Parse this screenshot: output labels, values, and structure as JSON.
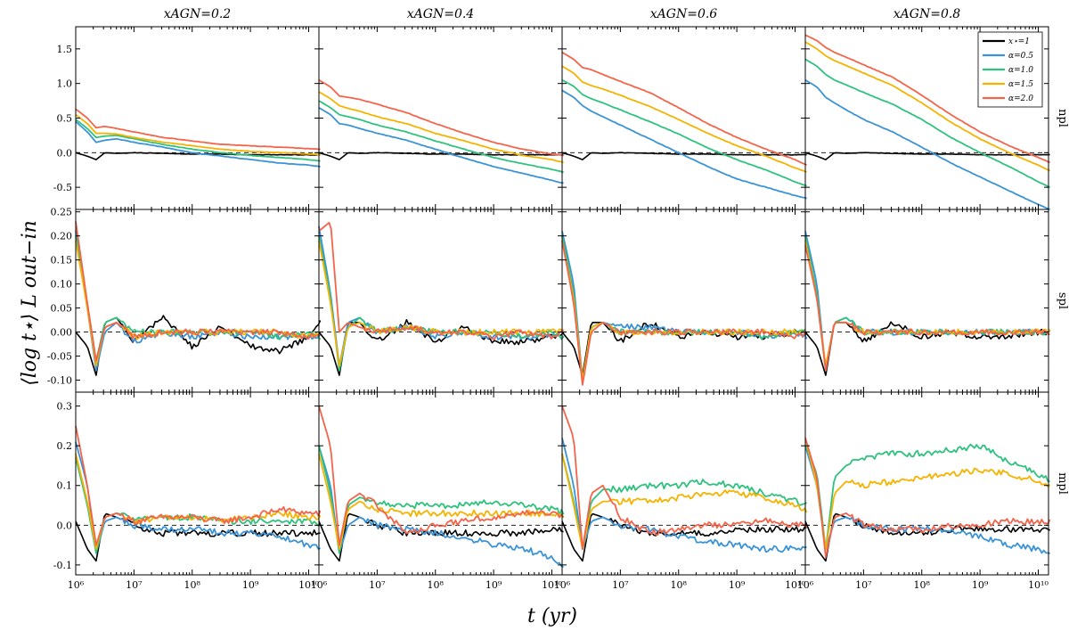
{
  "colors": {
    "xstar": "#000000",
    "a05": "#3a93d6",
    "a10": "#2ec27e",
    "a15": "#f5b300",
    "a20": "#f4644a"
  },
  "chart_data": {
    "type": "line",
    "xlabel": "t (yr)",
    "ylabel": "⟨log t⋆⟩ L out−in",
    "xscale": "log",
    "xlim": [
      1000000,
      15000000000
    ],
    "x_ticks": [
      {
        "value": 1000000,
        "label": "10⁶"
      },
      {
        "value": 10000000,
        "label": "10⁷"
      },
      {
        "value": 100000000,
        "label": "10⁸"
      },
      {
        "value": 1000000000,
        "label": "10⁹"
      },
      {
        "value": 10000000000,
        "label": "10¹⁰"
      }
    ],
    "columns": [
      "xAGN=0.2",
      "xAGN=0.4",
      "xAGN=0.6",
      "xAGN=0.8"
    ],
    "rows": [
      {
        "label": "npl",
        "ylim": [
          -0.82,
          1.82
        ],
        "yticks": [
          "-0.5",
          "0.0",
          "0.5",
          "1.0",
          "1.5"
        ],
        "ytick_values": [
          -0.5,
          0.0,
          0.5,
          1.0,
          1.5
        ]
      },
      {
        "label": "spl",
        "ylim": [
          -0.125,
          0.255
        ],
        "yticks": [
          "-0.10",
          "-0.05",
          "0.00",
          "0.05",
          "0.10",
          "0.15",
          "0.20",
          "0.25"
        ],
        "ytick_values": [
          -0.1,
          -0.05,
          0.0,
          0.05,
          0.1,
          0.15,
          0.2,
          0.25
        ]
      },
      {
        "label": "mpl",
        "ylim": [
          -0.125,
          0.335
        ],
        "yticks": [
          "-0.1",
          "0.0",
          "0.1",
          "0.2",
          "0.3"
        ],
        "ytick_values": [
          -0.1,
          0.0,
          0.1,
          0.2,
          0.3
        ]
      }
    ],
    "legend": {
      "position": "top-right",
      "entries": [
        {
          "key": "xstar",
          "label": "x⋆=1"
        },
        {
          "key": "a05",
          "label": "α=0.5"
        },
        {
          "key": "a10",
          "label": "α=1.0"
        },
        {
          "key": "a15",
          "label": "α=1.5"
        },
        {
          "key": "a20",
          "label": "α=2.0"
        }
      ]
    },
    "series_keys": [
      "xstar",
      "a05",
      "a10",
      "a15",
      "a20"
    ],
    "series_x_log10": [
      6.0,
      6.2,
      6.35,
      6.5,
      6.7,
      7.0,
      7.5,
      8.0,
      8.5,
      9.0,
      9.5,
      10.0,
      10.2
    ],
    "panels": [
      [
        {
          "xstar": [
            0.0,
            -0.05,
            -0.1,
            0.0,
            -0.01,
            0.0,
            -0.01,
            -0.02,
            -0.02,
            -0.03,
            -0.03,
            -0.03,
            -0.03
          ],
          "a05": [
            0.45,
            0.3,
            0.15,
            0.18,
            0.2,
            0.15,
            0.08,
            0.0,
            -0.05,
            -0.1,
            -0.15,
            -0.18,
            -0.2
          ],
          "a10": [
            0.48,
            0.35,
            0.22,
            0.24,
            0.25,
            0.2,
            0.12,
            0.05,
            0.0,
            -0.04,
            -0.07,
            -0.1,
            -0.12
          ],
          "a15": [
            0.55,
            0.42,
            0.28,
            0.28,
            0.27,
            0.22,
            0.15,
            0.1,
            0.05,
            0.02,
            0.0,
            -0.02,
            -0.03
          ],
          "a20": [
            0.63,
            0.5,
            0.36,
            0.38,
            0.35,
            0.3,
            0.22,
            0.17,
            0.12,
            0.1,
            0.08,
            0.06,
            0.05
          ]
        },
        {
          "xstar": [
            0.0,
            -0.03,
            -0.09,
            0.02,
            0.03,
            -0.02,
            0.03,
            -0.03,
            0.01,
            -0.03,
            -0.04,
            -0.01,
            0.02
          ],
          "a05": [
            0.21,
            0.05,
            -0.08,
            0.0,
            0.02,
            -0.02,
            0.0,
            -0.01,
            0.0,
            -0.01,
            -0.01,
            -0.01,
            -0.01
          ],
          "a10": [
            0.2,
            0.06,
            -0.06,
            0.02,
            0.03,
            0.0,
            0.0,
            0.0,
            0.0,
            0.0,
            -0.01,
            0.0,
            -0.01
          ],
          "a15": [
            0.19,
            0.05,
            -0.07,
            0.01,
            0.02,
            -0.01,
            0.0,
            0.0,
            0.0,
            0.0,
            0.0,
            -0.01,
            0.0
          ],
          "a20": [
            0.23,
            0.06,
            -0.06,
            0.01,
            0.02,
            -0.01,
            0.0,
            0.0,
            0.0,
            0.0,
            0.0,
            -0.01,
            0.0
          ]
        },
        {
          "xstar": [
            0.01,
            -0.06,
            -0.09,
            0.03,
            0.02,
            0.0,
            -0.02,
            -0.02,
            -0.02,
            -0.02,
            -0.02,
            -0.02,
            -0.02
          ],
          "a05": [
            0.21,
            0.1,
            -0.07,
            0.01,
            0.02,
            0.0,
            -0.01,
            -0.01,
            -0.02,
            -0.02,
            -0.03,
            -0.05,
            -0.06
          ],
          "a10": [
            0.17,
            0.05,
            -0.07,
            0.02,
            0.03,
            0.02,
            0.02,
            0.02,
            0.01,
            0.01,
            0.01,
            0.01,
            0.0
          ],
          "a15": [
            0.18,
            0.06,
            -0.06,
            0.02,
            0.03,
            0.01,
            0.02,
            0.02,
            0.01,
            0.02,
            0.03,
            0.02,
            0.02
          ],
          "a20": [
            0.25,
            0.1,
            -0.05,
            0.02,
            0.03,
            0.01,
            0.02,
            0.02,
            0.01,
            0.02,
            0.04,
            0.03,
            0.03
          ]
        }
      ],
      [
        {
          "xstar": [
            0.0,
            -0.05,
            -0.1,
            0.0,
            -0.01,
            0.0,
            -0.01,
            -0.02,
            -0.02,
            -0.03,
            -0.03,
            -0.03,
            -0.03
          ],
          "a05": [
            0.65,
            0.55,
            0.42,
            0.4,
            0.35,
            0.28,
            0.18,
            0.05,
            -0.08,
            -0.2,
            -0.3,
            -0.4,
            -0.44
          ],
          "a10": [
            0.75,
            0.65,
            0.55,
            0.52,
            0.48,
            0.4,
            0.3,
            0.17,
            0.05,
            -0.07,
            -0.16,
            -0.24,
            -0.28
          ],
          "a15": [
            0.88,
            0.78,
            0.68,
            0.64,
            0.6,
            0.52,
            0.42,
            0.28,
            0.17,
            0.05,
            -0.04,
            -0.1,
            -0.14
          ],
          "a20": [
            1.05,
            0.95,
            0.82,
            0.8,
            0.77,
            0.7,
            0.58,
            0.42,
            0.28,
            0.15,
            0.05,
            -0.02,
            -0.04
          ]
        },
        {
          "xstar": [
            0.0,
            -0.03,
            -0.09,
            0.02,
            0.02,
            -0.02,
            0.02,
            -0.02,
            0.01,
            -0.02,
            -0.02,
            -0.01,
            0.0
          ],
          "a05": [
            0.22,
            0.08,
            -0.07,
            0.02,
            0.03,
            0.0,
            0.01,
            -0.01,
            0.0,
            -0.01,
            -0.01,
            -0.01,
            -0.01
          ],
          "a10": [
            0.2,
            0.07,
            -0.08,
            0.01,
            0.03,
            0.0,
            0.01,
            0.0,
            0.0,
            0.0,
            -0.01,
            0.0,
            -0.01
          ],
          "a15": [
            0.19,
            0.06,
            -0.07,
            0.01,
            0.02,
            0.0,
            0.01,
            0.0,
            0.0,
            0.0,
            0.0,
            0.0,
            0.0
          ],
          "a20": [
            0.21,
            0.23,
            0.0,
            0.02,
            0.01,
            0.0,
            0.01,
            0.0,
            0.0,
            -0.01,
            0.0,
            -0.01,
            0.0
          ]
        },
        {
          "xstar": [
            0.01,
            -0.06,
            -0.09,
            0.03,
            0.02,
            0.0,
            -0.02,
            -0.02,
            -0.02,
            -0.02,
            -0.02,
            -0.01,
            -0.01
          ],
          "a05": [
            0.2,
            0.1,
            -0.07,
            0.0,
            0.02,
            0.0,
            -0.01,
            -0.02,
            -0.03,
            -0.05,
            -0.06,
            -0.08,
            -0.1
          ],
          "a10": [
            0.2,
            0.08,
            -0.07,
            0.05,
            0.07,
            0.06,
            0.05,
            0.05,
            0.05,
            0.06,
            0.05,
            0.04,
            0.03
          ],
          "a15": [
            0.18,
            0.06,
            -0.06,
            0.04,
            0.06,
            0.04,
            0.03,
            0.03,
            0.03,
            0.03,
            0.03,
            0.03,
            0.02
          ],
          "a20": [
            0.3,
            0.2,
            -0.05,
            0.06,
            0.08,
            0.05,
            -0.02,
            0.0,
            0.01,
            0.02,
            0.03,
            0.03,
            0.02
          ]
        }
      ],
      [
        {
          "xstar": [
            0.0,
            -0.05,
            -0.1,
            0.0,
            -0.01,
            0.0,
            -0.01,
            -0.02,
            -0.02,
            -0.03,
            -0.03,
            -0.03,
            -0.03
          ],
          "a05": [
            0.9,
            0.8,
            0.68,
            0.6,
            0.52,
            0.4,
            0.2,
            0.0,
            -0.2,
            -0.38,
            -0.5,
            -0.62,
            -0.66
          ],
          "a10": [
            1.05,
            0.96,
            0.84,
            0.78,
            0.72,
            0.62,
            0.45,
            0.27,
            0.07,
            -0.1,
            -0.25,
            -0.42,
            -0.48
          ],
          "a15": [
            1.25,
            1.15,
            1.02,
            0.97,
            0.92,
            0.83,
            0.67,
            0.48,
            0.28,
            0.1,
            -0.05,
            -0.22,
            -0.28
          ],
          "a20": [
            1.45,
            1.35,
            1.23,
            1.2,
            1.13,
            1.03,
            0.87,
            0.65,
            0.42,
            0.22,
            0.05,
            -0.1,
            -0.18
          ]
        },
        {
          "xstar": [
            0.0,
            -0.03,
            -0.09,
            0.02,
            0.02,
            -0.02,
            0.02,
            -0.01,
            0.0,
            -0.01,
            -0.01,
            0.0,
            0.0
          ],
          "a05": [
            0.21,
            0.1,
            -0.1,
            0.01,
            0.02,
            0.01,
            0.01,
            0.0,
            0.0,
            0.0,
            -0.01,
            0.0,
            -0.01
          ],
          "a10": [
            0.2,
            0.08,
            -0.1,
            0.01,
            0.02,
            0.0,
            0.0,
            0.0,
            0.0,
            0.0,
            -0.01,
            0.0,
            0.0
          ],
          "a15": [
            0.19,
            0.07,
            -0.1,
            0.01,
            0.02,
            0.0,
            0.0,
            0.0,
            0.0,
            0.0,
            0.0,
            0.0,
            0.0
          ],
          "a20": [
            0.19,
            0.06,
            -0.11,
            0.0,
            0.02,
            0.0,
            0.0,
            0.0,
            0.0,
            0.0,
            0.0,
            -0.01,
            0.0
          ]
        },
        {
          "xstar": [
            0.01,
            -0.06,
            -0.09,
            0.03,
            0.02,
            0.0,
            -0.02,
            -0.02,
            -0.02,
            -0.01,
            -0.01,
            -0.01,
            -0.01
          ],
          "a05": [
            0.22,
            0.1,
            -0.06,
            0.01,
            0.02,
            0.0,
            -0.01,
            -0.03,
            -0.04,
            -0.05,
            -0.06,
            -0.06,
            -0.06
          ],
          "a10": [
            0.18,
            0.06,
            -0.06,
            0.06,
            0.09,
            0.09,
            0.1,
            0.1,
            0.11,
            0.1,
            0.08,
            0.06,
            0.05
          ],
          "a15": [
            0.18,
            0.05,
            -0.06,
            0.04,
            0.06,
            0.06,
            0.06,
            0.07,
            0.08,
            0.08,
            0.07,
            0.05,
            0.04
          ],
          "a20": [
            0.3,
            0.22,
            -0.06,
            0.08,
            0.1,
            0.02,
            -0.02,
            -0.01,
            0.0,
            0.0,
            0.01,
            0.0,
            0.0
          ]
        }
      ],
      [
        {
          "xstar": [
            0.0,
            -0.05,
            -0.1,
            0.0,
            -0.01,
            0.0,
            -0.01,
            -0.02,
            -0.02,
            -0.03,
            -0.03,
            -0.03,
            -0.03
          ],
          "a05": [
            1.05,
            0.95,
            0.8,
            0.72,
            0.62,
            0.48,
            0.3,
            0.08,
            -0.15,
            -0.35,
            -0.55,
            -0.75,
            -0.82
          ],
          "a10": [
            1.35,
            1.25,
            1.13,
            1.05,
            0.98,
            0.87,
            0.7,
            0.48,
            0.22,
            0.0,
            -0.2,
            -0.42,
            -0.5
          ],
          "a15": [
            1.6,
            1.5,
            1.4,
            1.33,
            1.26,
            1.15,
            0.97,
            0.72,
            0.44,
            0.2,
            0.0,
            -0.18,
            -0.26
          ],
          "a20": [
            1.7,
            1.62,
            1.52,
            1.45,
            1.38,
            1.27,
            1.09,
            0.83,
            0.55,
            0.3,
            0.1,
            -0.07,
            -0.14
          ]
        },
        {
          "xstar": [
            0.0,
            -0.03,
            -0.09,
            0.02,
            0.02,
            -0.02,
            0.02,
            -0.01,
            0.0,
            -0.01,
            -0.01,
            0.0,
            0.0
          ],
          "a05": [
            0.21,
            0.1,
            -0.08,
            0.02,
            0.03,
            0.0,
            0.0,
            0.0,
            0.0,
            0.0,
            0.0,
            0.0,
            0.0
          ],
          "a10": [
            0.2,
            0.08,
            -0.08,
            0.02,
            0.03,
            0.0,
            0.0,
            0.0,
            0.0,
            0.0,
            0.0,
            0.0,
            0.0
          ],
          "a15": [
            0.19,
            0.07,
            -0.07,
            0.02,
            0.02,
            0.0,
            0.0,
            0.0,
            0.0,
            0.0,
            0.0,
            0.0,
            0.0
          ],
          "a20": [
            0.18,
            0.07,
            -0.08,
            0.02,
            0.02,
            0.0,
            0.0,
            0.0,
            0.0,
            0.0,
            0.0,
            0.0,
            0.0
          ]
        },
        {
          "xstar": [
            0.01,
            -0.06,
            -0.09,
            0.03,
            0.02,
            0.0,
            -0.02,
            -0.02,
            -0.01,
            -0.01,
            -0.01,
            -0.01,
            -0.01
          ],
          "a05": [
            0.2,
            0.1,
            -0.06,
            0.01,
            0.02,
            0.0,
            -0.01,
            -0.01,
            -0.01,
            -0.03,
            -0.05,
            -0.06,
            -0.07
          ],
          "a10": [
            0.2,
            0.13,
            -0.06,
            0.12,
            0.15,
            0.17,
            0.18,
            0.18,
            0.19,
            0.2,
            0.16,
            0.13,
            0.11
          ],
          "a15": [
            0.22,
            0.1,
            -0.06,
            0.08,
            0.11,
            0.1,
            0.11,
            0.12,
            0.13,
            0.14,
            0.13,
            0.11,
            0.1
          ],
          "a20": [
            0.22,
            0.12,
            -0.08,
            0.02,
            0.03,
            0.0,
            -0.01,
            -0.01,
            0.0,
            0.0,
            0.01,
            0.01,
            0.01
          ]
        }
      ]
    ]
  }
}
